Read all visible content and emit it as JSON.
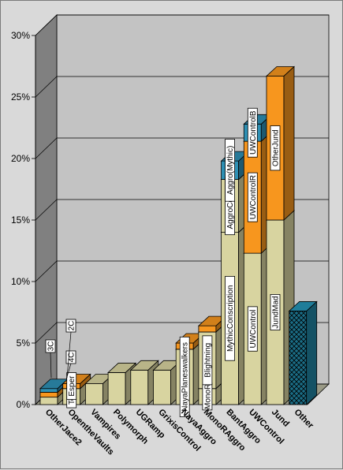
{
  "chart_data": {
    "type": "bar",
    "subtype": "stacked-3d",
    "ylim": [
      0,
      30
    ],
    "yticks": [
      "0%",
      "5%",
      "10%",
      "15%",
      "20%",
      "25%",
      "30%"
    ],
    "ytick_values": [
      0,
      5,
      10,
      15,
      20,
      25,
      30
    ],
    "grid": true,
    "colors": {
      "khaki": "#d8d4a0",
      "orange": "#f7961e",
      "teal": "#2e90b4",
      "other": "#1b6d86",
      "wall": "#c3c3c3",
      "floor": "#9a9a86",
      "leftwall": "#808080"
    },
    "categories": [
      "OtherJace2",
      "OpentheVaults",
      "Vampires",
      "Polymorph",
      "UGRamp",
      "GrixisControl",
      "NayaAggro",
      "MonoRAggro",
      "BantAggro",
      "UWControl",
      "Jund",
      "Other"
    ],
    "bars": [
      {
        "category": "OtherJace2",
        "segments": [
          {
            "value": 0.6,
            "color": "khaki"
          },
          {
            "value": 0.4,
            "color": "orange"
          },
          {
            "value": 0.3,
            "color": "teal"
          }
        ]
      },
      {
        "category": "OpentheVaults",
        "segments": [
          {
            "value": 1.3,
            "color": "khaki",
            "label": "Tezz"
          },
          {
            "value": 0.4,
            "color": "orange",
            "label": "Esper"
          }
        ]
      },
      {
        "category": "Vampires",
        "segments": [
          {
            "value": 1.7,
            "color": "khaki"
          }
        ]
      },
      {
        "category": "Polymorph",
        "segments": [
          {
            "value": 2.6,
            "color": "khaki"
          }
        ]
      },
      {
        "category": "UGRamp",
        "segments": [
          {
            "value": 2.8,
            "color": "khaki"
          }
        ]
      },
      {
        "category": "GrixisControl",
        "segments": [
          {
            "value": 2.8,
            "color": "khaki"
          }
        ]
      },
      {
        "category": "NayaAggro",
        "segments": [
          {
            "value": 4.5,
            "color": "khaki",
            "label": "NayaPlaneswalkers"
          },
          {
            "value": 0.5,
            "color": "orange"
          }
        ]
      },
      {
        "category": "MonoRAggro",
        "segments": [
          {
            "value": 1.3,
            "color": "khaki",
            "label": "MonoR"
          },
          {
            "value": 4.6,
            "color": "khaki",
            "label": "Blightning"
          },
          {
            "value": 0.5,
            "color": "orange"
          }
        ]
      },
      {
        "category": "BantAggro",
        "segments": [
          {
            "value": 14.0,
            "color": "khaki",
            "label": "MythicConscription"
          },
          {
            "value": 4.3,
            "color": "khaki",
            "label": "AggroControl"
          },
          {
            "value": 1.5,
            "color": "teal",
            "label": "Aggro(Mythic)"
          }
        ]
      },
      {
        "category": "UWControl",
        "segments": [
          {
            "value": 12.3,
            "color": "khaki",
            "label": "UWControl"
          },
          {
            "value": 9.1,
            "color": "orange",
            "label": "UWControlR"
          },
          {
            "value": 1.4,
            "color": "teal",
            "label": "UWControlB"
          }
        ]
      },
      {
        "category": "Jund",
        "segments": [
          {
            "value": 15.0,
            "color": "khaki",
            "label": "JundMad"
          },
          {
            "value": 11.7,
            "color": "orange",
            "label": "OtherJund"
          }
        ]
      },
      {
        "category": "Other",
        "segments": [
          {
            "value": 7.6,
            "color": "other",
            "pattern": "crosshatch"
          }
        ]
      }
    ],
    "callouts": [
      {
        "label": "3C"
      },
      {
        "label": "4C"
      },
      {
        "label": "2C"
      }
    ]
  }
}
